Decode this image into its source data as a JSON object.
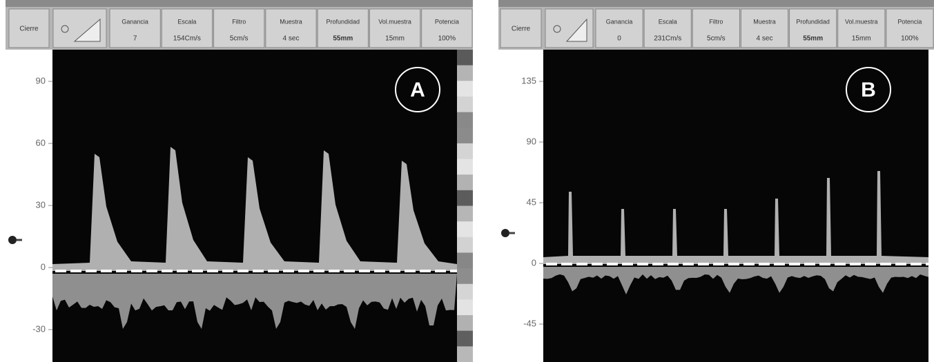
{
  "panels": [
    {
      "label": "A",
      "first_button": "Cierre",
      "toolbar": [
        {
          "title": "Ganancia",
          "value": "7"
        },
        {
          "title": "Escala",
          "value": "154Cm/s"
        },
        {
          "title": "Filtro",
          "value": "5cm/s"
        },
        {
          "title": "Muestra",
          "value": "4 sec"
        },
        {
          "title": "Profundidad",
          "value": "55mm"
        },
        {
          "title": "Vol.muestra",
          "value": "15mm"
        },
        {
          "title": "Potencia",
          "value": "100%"
        }
      ],
      "yticks": [
        90,
        60,
        30,
        0,
        -30
      ]
    },
    {
      "label": "B",
      "first_button": "Cierre",
      "toolbar": [
        {
          "title": "Ganancia",
          "value": "0"
        },
        {
          "title": "Escala",
          "value": "231Cm/s"
        },
        {
          "title": "Filtro",
          "value": "5cm/s"
        },
        {
          "title": "Muestra",
          "value": "4 sec"
        },
        {
          "title": "Profundidad",
          "value": "55mm"
        },
        {
          "title": "Vol.muestra",
          "value": "15mm"
        },
        {
          "title": "Potencia",
          "value": "100%"
        }
      ],
      "yticks": [
        135,
        90,
        45,
        0,
        -45
      ]
    }
  ]
}
